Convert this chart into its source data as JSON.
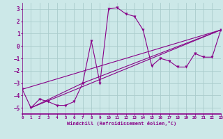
{
  "xlabel": "Windchill (Refroidissement éolien,°C)",
  "xlim": [
    0,
    23
  ],
  "ylim": [
    -5.5,
    3.5
  ],
  "xticks": [
    0,
    1,
    2,
    3,
    4,
    5,
    6,
    7,
    8,
    9,
    10,
    11,
    12,
    13,
    14,
    15,
    16,
    17,
    18,
    19,
    20,
    21,
    22,
    23
  ],
  "yticks": [
    -5,
    -4,
    -3,
    -2,
    -1,
    0,
    1,
    2,
    3
  ],
  "background_color": "#cce8e8",
  "grid_color": "#aacccc",
  "line_color": "#880088",
  "main_line": {
    "x": [
      0,
      1,
      2,
      3,
      4,
      5,
      6,
      7,
      8,
      9,
      10,
      11,
      12,
      13,
      14,
      15,
      16,
      17,
      18,
      19,
      20,
      21,
      22,
      23
    ],
    "y": [
      -3.5,
      -5.0,
      -4.3,
      -4.5,
      -4.8,
      -4.8,
      -4.5,
      -3.0,
      0.4,
      -3.0,
      3.0,
      3.1,
      2.6,
      2.4,
      1.3,
      -1.6,
      -1.0,
      -1.2,
      -1.7,
      -1.7,
      -0.6,
      -0.9,
      -0.9,
      1.3
    ]
  },
  "ref_lines": [
    {
      "x": [
        0,
        23
      ],
      "y": [
        -3.5,
        1.3
      ]
    },
    {
      "x": [
        1,
        23
      ],
      "y": [
        -5.0,
        1.3
      ]
    },
    {
      "x": [
        1,
        7,
        23
      ],
      "y": [
        -5.0,
        -3.0,
        1.3
      ]
    }
  ]
}
